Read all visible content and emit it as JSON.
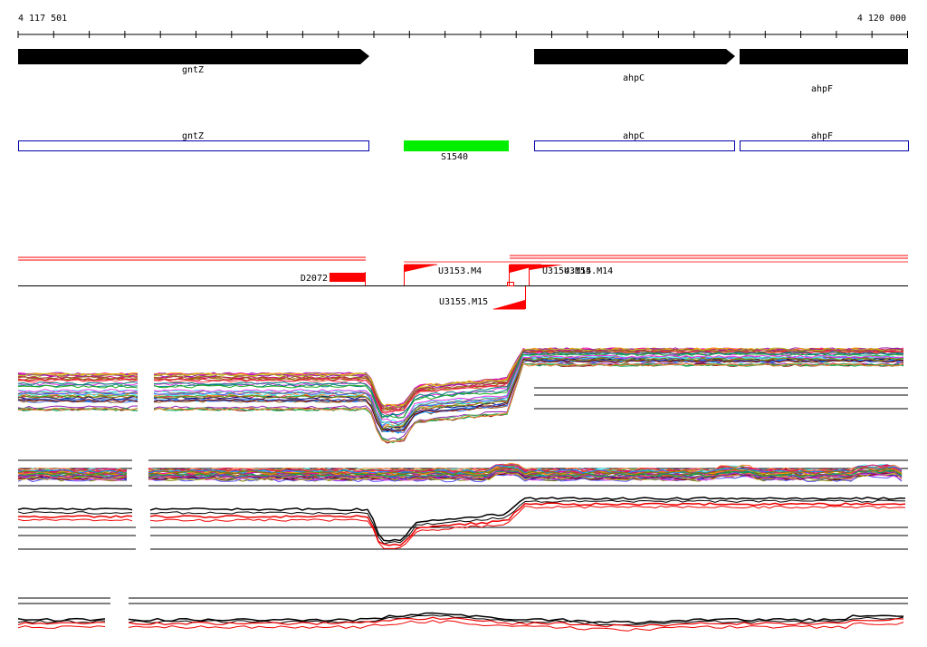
{
  "ruler": {
    "start_label": "4 117 501",
    "end_label": "4 120 000"
  },
  "genes": [
    {
      "name": "gntZ",
      "strand": "+"
    },
    {
      "name": "ahpC",
      "strand": "+"
    },
    {
      "name": "ahpF",
      "strand": "+"
    }
  ],
  "annotations": [
    {
      "name": "gntZ",
      "type": "cds-outline",
      "color": "#0000aa"
    },
    {
      "name": "S1540",
      "type": "srna",
      "color": "#00ee00"
    },
    {
      "name": "ahpC",
      "type": "cds-outline",
      "color": "#0000aa"
    },
    {
      "name": "ahpF",
      "type": "cds-outline",
      "color": "#0000aa"
    }
  ],
  "segments": [
    {
      "name": "D2072",
      "color": "#ff0000"
    },
    {
      "name": "U3153.M4",
      "color": "#ff0000"
    },
    {
      "name": "U3154.M14",
      "color": "#ff0000"
    },
    {
      "name": "U3155.M14",
      "color": "#ff0000"
    },
    {
      "name": "U3155.M15",
      "color": "#ff0000"
    }
  ],
  "colors": {
    "gene_arrow": "#000000",
    "cds_outline": "#0000aa",
    "srna": "#00ee00",
    "segment": "#ff0000",
    "profile_highlight": "#ee0000"
  },
  "expression_tracks": [
    {
      "name": "profile-panel-1",
      "style": "multi-color"
    },
    {
      "name": "profile-panel-2",
      "style": "multi-color"
    },
    {
      "name": "profile-panel-3",
      "style": "black-red"
    },
    {
      "name": "profile-panel-4",
      "style": "black-red"
    }
  ]
}
